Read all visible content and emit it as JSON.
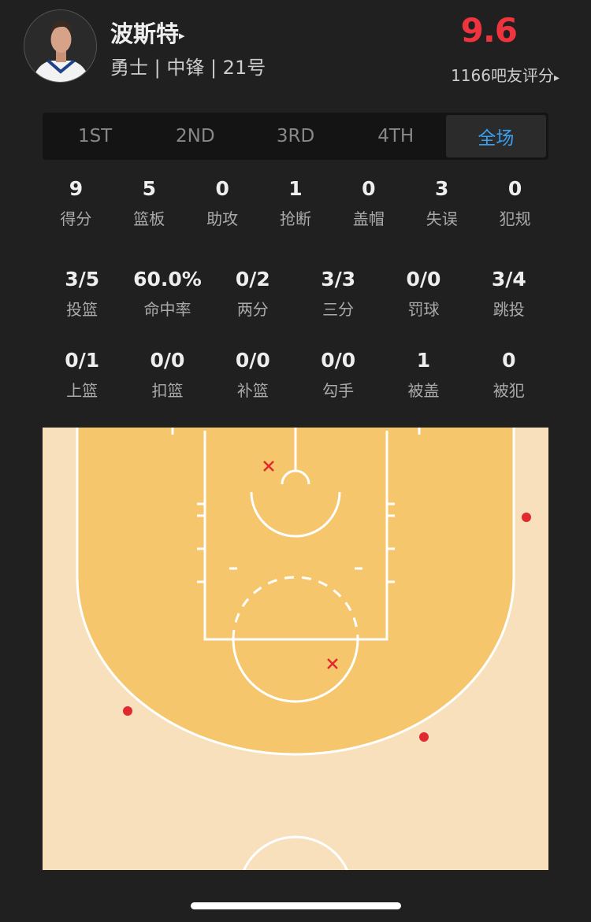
{
  "player": {
    "name": "波斯特",
    "info": "勇士 | 中锋 | 21号",
    "rating": "9.6",
    "raters": "1166吧友评分",
    "arrow": "▸"
  },
  "tabs": [
    {
      "label": "1ST"
    },
    {
      "label": "2ND"
    },
    {
      "label": "3RD"
    },
    {
      "label": "4TH"
    },
    {
      "label": "全场",
      "active": true
    }
  ],
  "stats_main": [
    {
      "value": "9",
      "label": "得分"
    },
    {
      "value": "5",
      "label": "篮板"
    },
    {
      "value": "0",
      "label": "助攻"
    },
    {
      "value": "1",
      "label": "抢断"
    },
    {
      "value": "0",
      "label": "盖帽"
    },
    {
      "value": "3",
      "label": "失误"
    },
    {
      "value": "0",
      "label": "犯规"
    }
  ],
  "stats_shooting": [
    {
      "value": "3/5",
      "label": "投篮"
    },
    {
      "value": "60.0%",
      "label": "命中率"
    },
    {
      "value": "0/2",
      "label": "两分"
    },
    {
      "value": "3/3",
      "label": "三分"
    },
    {
      "value": "0/0",
      "label": "罚球"
    },
    {
      "value": "3/4",
      "label": "跳投"
    }
  ],
  "stats_other": [
    {
      "value": "0/1",
      "label": "上篮"
    },
    {
      "value": "0/0",
      "label": "扣篮"
    },
    {
      "value": "0/0",
      "label": "补篮"
    },
    {
      "value": "0/0",
      "label": "勾手"
    },
    {
      "value": "1",
      "label": "被盖"
    },
    {
      "value": "0",
      "label": "被犯"
    }
  ],
  "court": {
    "colors": {
      "inside": "#f5c66c",
      "outside": "#f8e0bd",
      "line": "#ffffff",
      "marker": "#e02a2f"
    },
    "shots": [
      {
        "result": "missed"
      },
      {
        "result": "missed"
      },
      {
        "result": "made"
      },
      {
        "result": "made"
      },
      {
        "result": "made"
      }
    ]
  }
}
